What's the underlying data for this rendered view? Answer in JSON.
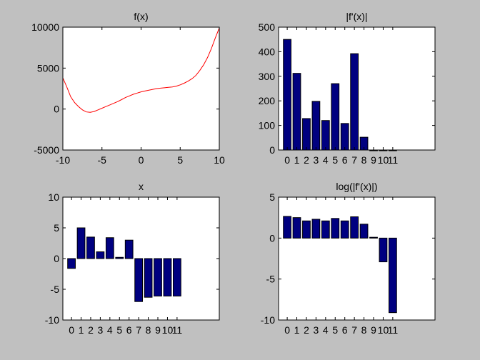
{
  "figure": {
    "background": "#c0c0c0",
    "axes_background": "#ffffff"
  },
  "chart_data": [
    {
      "type": "line",
      "title": "f(x)",
      "xlabel": "",
      "ylabel": "",
      "xlim": [
        -10,
        10
      ],
      "ylim": [
        -5000,
        10000
      ],
      "xticks": [
        -10,
        -5,
        0,
        5,
        10
      ],
      "xtick_labels": [
        "-10",
        "-5",
        "0",
        "5",
        "10"
      ],
      "yticks": [
        -5000,
        0,
        5000,
        10000
      ],
      "ytick_labels": [
        "-5000",
        "0",
        "5000",
        "10000"
      ],
      "grid": false,
      "series": [
        {
          "color": "#ff0000",
          "x": [
            -10,
            -9.5,
            -9,
            -8.5,
            -8,
            -7.5,
            -7,
            -6.5,
            -6,
            -5.5,
            -5,
            -4.5,
            -4,
            -3.5,
            -3,
            -2.5,
            -2,
            -1.5,
            -1,
            -0.5,
            0,
            0.5,
            1,
            1.5,
            2,
            2.5,
            3,
            3.5,
            4,
            4.5,
            5,
            5.5,
            6,
            6.5,
            7,
            7.5,
            8,
            8.5,
            9,
            9.5,
            10
          ],
          "y": [
            3800,
            2700,
            1500,
            800,
            300,
            -100,
            -350,
            -400,
            -300,
            -100,
            100,
            300,
            500,
            700,
            900,
            1150,
            1400,
            1600,
            1800,
            1950,
            2100,
            2200,
            2300,
            2400,
            2500,
            2550,
            2600,
            2650,
            2700,
            2800,
            2950,
            3150,
            3400,
            3700,
            4100,
            4700,
            5400,
            6300,
            7400,
            8700,
            9900
          ]
        }
      ]
    },
    {
      "type": "bar",
      "title": "|f'(x)|",
      "xlabel": "",
      "ylabel": "",
      "xlim": [
        -0.9,
        15.4
      ],
      "ylim": [
        0,
        500
      ],
      "xticks": [
        0,
        1,
        2,
        3,
        4,
        5,
        6,
        7,
        8,
        9,
        10,
        11
      ],
      "xtick_labels": [
        "0",
        "1",
        "2",
        "3",
        "4",
        "5",
        "6",
        "7",
        "8",
        "9",
        "10",
        "11"
      ],
      "yticks": [
        0,
        100,
        200,
        300,
        400,
        500
      ],
      "ytick_labels": [
        "0",
        "100",
        "200",
        "300",
        "400",
        "500"
      ],
      "grid": false,
      "bar_color": "#000080",
      "categories": [
        0,
        1,
        2,
        3,
        4,
        5,
        6,
        7,
        8,
        9,
        10,
        11
      ],
      "values": [
        450,
        312,
        128,
        198,
        120,
        270,
        108,
        392,
        52,
        0,
        0,
        0
      ]
    },
    {
      "type": "bar",
      "title": "x",
      "xlabel": "",
      "ylabel": "",
      "xlim": [
        -0.9,
        15.4
      ],
      "ylim": [
        -10,
        10
      ],
      "xticks": [
        0,
        1,
        2,
        3,
        4,
        5,
        6,
        7,
        8,
        9,
        10,
        11
      ],
      "xtick_labels": [
        "0",
        "1",
        "2",
        "3",
        "4",
        "5",
        "6",
        "7",
        "8",
        "9",
        "10",
        "11"
      ],
      "yticks": [
        -10,
        -5,
        0,
        5,
        10
      ],
      "ytick_labels": [
        "-10",
        "-5",
        "0",
        "5",
        "10"
      ],
      "grid": false,
      "bar_color": "#000080",
      "categories": [
        0,
        1,
        2,
        3,
        4,
        5,
        6,
        7,
        8,
        9,
        10,
        11
      ],
      "values": [
        -1.6,
        5.0,
        3.5,
        1.1,
        3.4,
        0.2,
        3.0,
        -7.0,
        -6.3,
        -6.1,
        -6.1,
        -6.1
      ]
    },
    {
      "type": "bar",
      "title": "log(|f'(x)|)",
      "xlabel": "",
      "ylabel": "",
      "xlim": [
        -0.9,
        15.4
      ],
      "ylim": [
        -10,
        5
      ],
      "xticks": [
        0,
        1,
        2,
        3,
        4,
        5,
        6,
        7,
        8,
        9,
        10,
        11
      ],
      "xtick_labels": [
        "0",
        "1",
        "2",
        "3",
        "4",
        "5",
        "6",
        "7",
        "8",
        "9",
        "10",
        "11"
      ],
      "yticks": [
        -10,
        -5,
        0,
        5
      ],
      "ytick_labels": [
        "-10",
        "-5",
        "0",
        "5"
      ],
      "grid": false,
      "bar_color": "#000080",
      "categories": [
        0,
        1,
        2,
        3,
        4,
        5,
        6,
        7,
        8,
        9,
        10,
        11
      ],
      "values": [
        2.65,
        2.5,
        2.1,
        2.3,
        2.1,
        2.4,
        2.1,
        2.6,
        1.7,
        0.1,
        -2.9,
        -9.1
      ]
    }
  ]
}
